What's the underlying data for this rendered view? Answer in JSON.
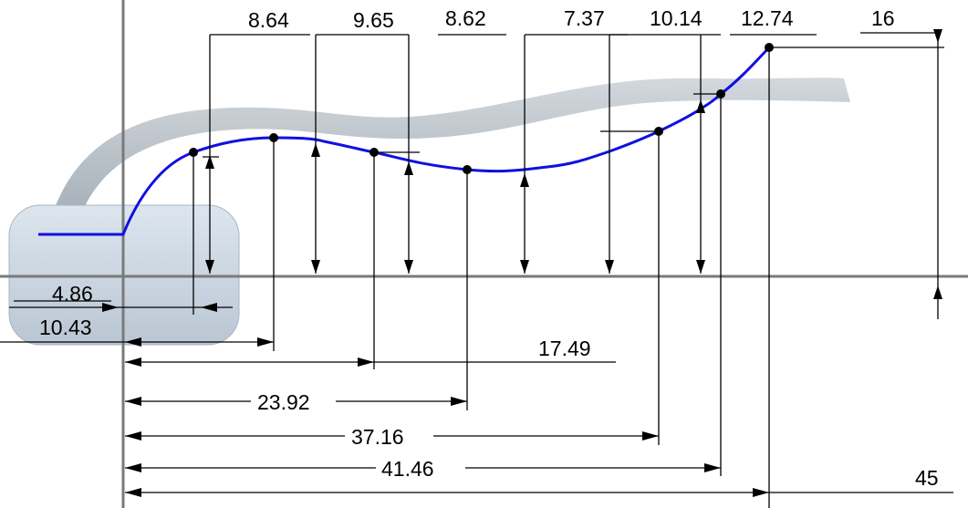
{
  "dimensions": {
    "vertical": [
      "8.64",
      "9.65",
      "8.62",
      "7.37",
      "10.14",
      "12.74",
      "16"
    ],
    "horizontal": [
      "4.86",
      "10.43",
      "17.49",
      "23.92",
      "37.16",
      "41.46",
      "45"
    ]
  }
}
